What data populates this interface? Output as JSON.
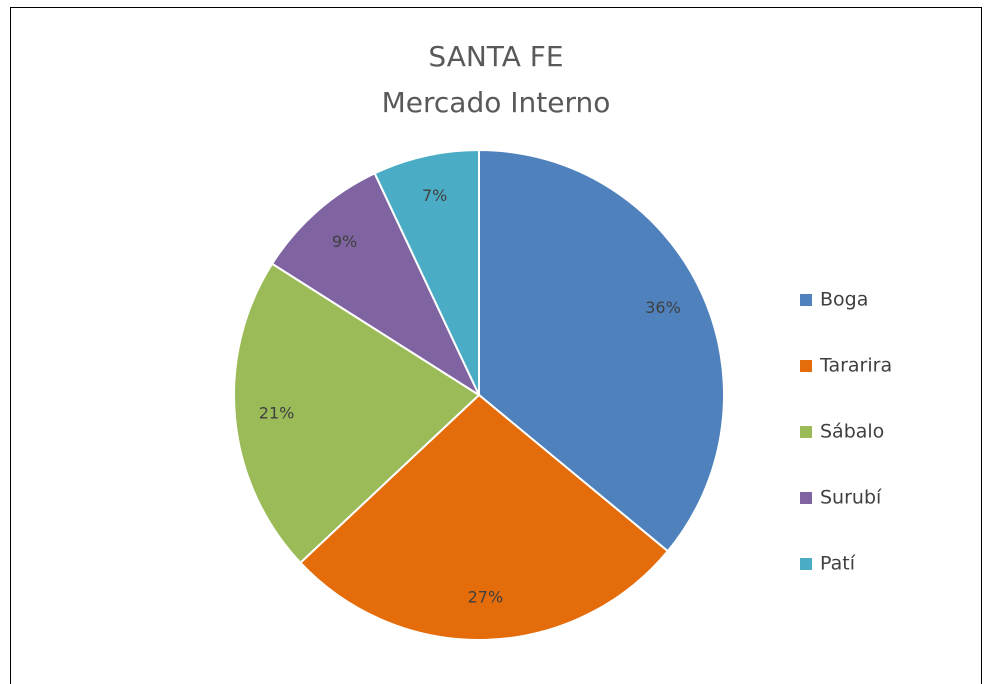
{
  "chart_data": {
    "type": "pie",
    "title": "SANTA FE",
    "subtitle": "Mercado Interno",
    "categories": [
      "Boga",
      "Tararira",
      "Sábalo",
      "Surubí",
      "Patí"
    ],
    "values": [
      36,
      27,
      21,
      9,
      7
    ],
    "value_labels": [
      "36%",
      "27%",
      "21%",
      "9%",
      "7%"
    ],
    "colors": [
      "#4f81bd",
      "#e46c0a",
      "#9bbb59",
      "#8064a2",
      "#4bacc6"
    ],
    "legend": "right"
  }
}
